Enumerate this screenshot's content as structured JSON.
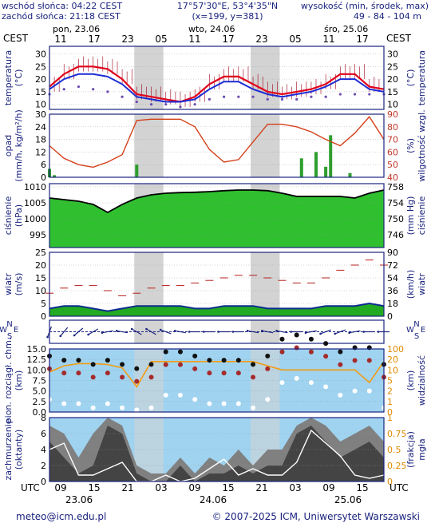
{
  "header": {
    "sunrise": "wschód słońca: 04:22 CEST",
    "sunset": "zachód słońca: 21:18 CEST",
    "coords": "17°57'30\"E, 53°4'35\"N",
    "grid": "(x=199, y=381)",
    "elev_label": "wysokość (min, środek, max)",
    "elev_value": "49 - 84 - 104 m"
  },
  "top_axis": {
    "tz": "CEST",
    "days": [
      "pon, 23.06",
      "wto, 24.06",
      "śro, 25.06"
    ],
    "hours": [
      "11",
      "17",
      "23",
      "05",
      "11",
      "17",
      "23",
      "05",
      "11",
      "17"
    ]
  },
  "bottom_axis": {
    "tz": "UTC",
    "hours": [
      "09",
      "15",
      "21",
      "03",
      "09",
      "15",
      "21",
      "03",
      "09",
      "15"
    ],
    "dates": [
      "23.06",
      "24.06",
      "25.06"
    ]
  },
  "footer": {
    "email": "meteo@icm.edu.pl",
    "copyright": "© 2007-2025 ICM, Uniwersytet Warszawski"
  },
  "colors": {
    "frame": "#1a237e",
    "night": "#d3d3d3",
    "temp_max": "#e0001a",
    "temp_mean": "#1a2bd4",
    "dew_point": "#6a4ab0",
    "precip": "#2e9e2e",
    "humidity": "#d4401a",
    "pressure_fill": "#2fbf2f",
    "wind_fill": "#22aa22",
    "sky": "#9fd3f0",
    "cloud": "#444444"
  },
  "panels": {
    "temperature": {
      "left": "temperatura",
      "left_unit": "(°C)",
      "right": "temperatura",
      "right_unit": "(°C)"
    },
    "precip": {
      "left": "opad",
      "left_unit": "(mm/h, kg/m²/h)",
      "right": "wilgotność wzgl.",
      "right_unit": "(%)"
    },
    "pressure": {
      "left": "ciśnienie",
      "left_unit": "(hPa)",
      "right": "ciśnienie",
      "right_unit": "(mm Hg)"
    },
    "wind": {
      "left": "wiatr",
      "left_unit": "(m/s)",
      "right": "wiatr",
      "right_unit": "(km/h)"
    },
    "visibility": {
      "left": "pion. rozciągł. chm.",
      "left_unit": "(km)",
      "right": "widzialność",
      "right_unit": "(km)"
    },
    "clouds": {
      "left": "zachmurzenie",
      "left_unit": "(oktanty)",
      "right": "mgła",
      "right_unit": "(frakcja)"
    }
  },
  "chart_data": [
    {
      "type": "line",
      "panel": "temperature",
      "ylim": [
        8,
        33
      ],
      "ticks": [
        "30",
        "25",
        "20",
        "15",
        "10"
      ],
      "x_hours": [
        0,
        3,
        6,
        9,
        12,
        15,
        18,
        21,
        24,
        27,
        30,
        33,
        36,
        39,
        42,
        45,
        48,
        51,
        54,
        57,
        60,
        63,
        66,
        69
      ],
      "series": [
        {
          "name": "temp_max",
          "values": [
            17,
            22,
            25,
            25,
            24,
            20,
            14,
            13,
            12,
            11,
            13,
            18,
            21,
            21,
            18,
            15,
            14,
            15,
            16,
            18,
            22,
            22,
            17,
            16
          ]
        },
        {
          "name": "temp_mean",
          "values": [
            16,
            20,
            22,
            22,
            21,
            18,
            13,
            12,
            11,
            11,
            12,
            16,
            19,
            19,
            16,
            14,
            13,
            14,
            15,
            17,
            20,
            20,
            16,
            15
          ]
        },
        {
          "name": "dew_point",
          "values": [
            14,
            16,
            17,
            16,
            15,
            13,
            11,
            10,
            10,
            9,
            10,
            12,
            13,
            13,
            13,
            12,
            12,
            12,
            13,
            13,
            14,
            14,
            14,
            14
          ]
        }
      ]
    },
    {
      "type": "bar",
      "panel": "precip",
      "ylim": [
        0,
        30
      ],
      "ticks": [
        "30",
        "24",
        "18",
        "12",
        "6",
        "0"
      ],
      "right_ticks": [
        "90",
        "80",
        "70",
        "60",
        "50",
        "40"
      ],
      "bars": [
        {
          "hour": 0,
          "value": 4
        },
        {
          "hour": 1,
          "value": 1
        },
        {
          "hour": 18,
          "value": 6
        },
        {
          "hour": 52,
          "value": 9
        },
        {
          "hour": 55,
          "value": 12
        },
        {
          "hour": 57,
          "value": 5
        },
        {
          "hour": 58,
          "value": 20
        },
        {
          "hour": 62,
          "value": 2
        }
      ],
      "humidity": {
        "x_hours": [
          0,
          3,
          6,
          9,
          12,
          15,
          18,
          21,
          24,
          27,
          30,
          33,
          36,
          39,
          42,
          45,
          48,
          51,
          54,
          57,
          60,
          63,
          66,
          69
        ],
        "values": [
          65,
          55,
          50,
          48,
          52,
          58,
          85,
          86,
          86,
          86,
          80,
          62,
          52,
          54,
          68,
          82,
          82,
          80,
          76,
          70,
          65,
          75,
          88,
          70
        ]
      }
    },
    {
      "type": "area",
      "panel": "pressure",
      "ylim": [
        991,
        1011
      ],
      "ticks": [
        "1010",
        "1005",
        "1000",
        "995"
      ],
      "right_ticks": [
        "758",
        "754",
        "750",
        "746"
      ],
      "x_hours": [
        0,
        3,
        6,
        9,
        12,
        15,
        18,
        21,
        24,
        27,
        30,
        33,
        36,
        39,
        42,
        45,
        48,
        51,
        54,
        57,
        60,
        63,
        66,
        69
      ],
      "values": [
        1006.5,
        1006,
        1005.5,
        1004.5,
        1002,
        1004.5,
        1006.5,
        1007.5,
        1008,
        1008.2,
        1008.3,
        1008.5,
        1008.8,
        1009,
        1009,
        1008.8,
        1008,
        1007,
        1007,
        1007,
        1007,
        1006.5,
        1008,
        1009
      ]
    },
    {
      "type": "area",
      "panel": "wind",
      "ylim": [
        0,
        25
      ],
      "ticks": [
        "25",
        "20",
        "15",
        "10",
        "5",
        "0"
      ],
      "right_ticks": [
        "90",
        "72",
        "54",
        "36",
        "18",
        "0"
      ],
      "x_hours": [
        0,
        3,
        6,
        9,
        12,
        15,
        18,
        21,
        24,
        27,
        30,
        33,
        36,
        39,
        42,
        45,
        48,
        51,
        54,
        57,
        60,
        63,
        66,
        69
      ],
      "speed": [
        3,
        4,
        4,
        3,
        2,
        3,
        4,
        4,
        4,
        4,
        3,
        3,
        4,
        4,
        4,
        3,
        3,
        3,
        3,
        4,
        4,
        4,
        5,
        4
      ],
      "gusts": [
        9,
        11,
        12,
        12,
        10,
        8,
        9,
        11,
        12,
        12,
        13,
        14,
        15,
        16,
        16,
        15,
        14,
        13,
        13,
        15,
        18,
        20,
        22,
        20
      ]
    },
    {
      "type": "scatter",
      "panel": "direction",
      "labels": [
        "N",
        "W",
        "E",
        "S"
      ],
      "x_hours": [
        0,
        3,
        6,
        9,
        12,
        15,
        18,
        21,
        24,
        27,
        30,
        33,
        36,
        39,
        42,
        45,
        48,
        51,
        54,
        57,
        60,
        63,
        66,
        69
      ],
      "direction_deg": [
        200,
        220,
        230,
        240,
        260,
        280,
        300,
        300,
        290,
        280,
        270,
        270,
        270,
        270,
        280,
        280,
        280,
        270,
        260,
        250,
        250,
        260,
        270,
        270
      ]
    },
    {
      "type": "line",
      "panel": "visibility",
      "ylim": [
        0,
        15
      ],
      "ticks": [
        "15.0",
        "12.5",
        "10.0",
        "7.5",
        "5.0",
        "2.5",
        "0.0"
      ],
      "right_ticks": [
        "100",
        "20",
        "10",
        "5",
        "2",
        "1",
        "0"
      ],
      "x_hours": [
        0,
        3,
        6,
        9,
        12,
        15,
        18,
        21,
        24,
        27,
        30,
        33,
        36,
        39,
        42,
        45,
        48,
        51,
        54,
        57,
        60,
        63,
        66,
        69
      ],
      "visibility": [
        9.5,
        11,
        11.5,
        11.5,
        11.3,
        10.5,
        6,
        12,
        12,
        12,
        12,
        12,
        12,
        12,
        12,
        11,
        10,
        10,
        10,
        10,
        10,
        10,
        7,
        12
      ],
      "cloud_extent": [
        8,
        7,
        7,
        6,
        7,
        6,
        5,
        6,
        9,
        9,
        8,
        7,
        7,
        7,
        6,
        8,
        12,
        13,
        12,
        11,
        9,
        10,
        10,
        6
      ]
    },
    {
      "type": "area",
      "panel": "clouds",
      "ylim": [
        0,
        8
      ],
      "ticks": [
        "8",
        "6",
        "4",
        "2",
        "0"
      ],
      "right_ticks": [
        "1",
        "0.75",
        "0.5",
        "0.25",
        "0"
      ],
      "x_hours": [
        0,
        3,
        6,
        9,
        12,
        15,
        18,
        21,
        24,
        27,
        30,
        33,
        36,
        39,
        42,
        45,
        48,
        51,
        54,
        57,
        60,
        63,
        66,
        69
      ],
      "total_cloud": [
        7,
        6,
        3,
        6,
        8,
        7,
        2,
        1,
        1,
        3,
        1,
        3,
        2,
        4,
        2,
        4,
        4,
        7,
        8,
        7,
        5,
        6,
        7,
        5
      ],
      "low_cloud": [
        5,
        3,
        1,
        2,
        7,
        6,
        1,
        0,
        0,
        2,
        0,
        1,
        1,
        2,
        1,
        2,
        2,
        6,
        7,
        5,
        3,
        4,
        5,
        3
      ],
      "fog": [
        0.5,
        0.6,
        0.1,
        0.1,
        0.2,
        0.3,
        0,
        0,
        0.1,
        0,
        0.05,
        0.2,
        0.35,
        0.1,
        0.2,
        0.1,
        0.1,
        0.3,
        0.8,
        0.6,
        0.4,
        0.1,
        0.05,
        0.1
      ]
    }
  ]
}
